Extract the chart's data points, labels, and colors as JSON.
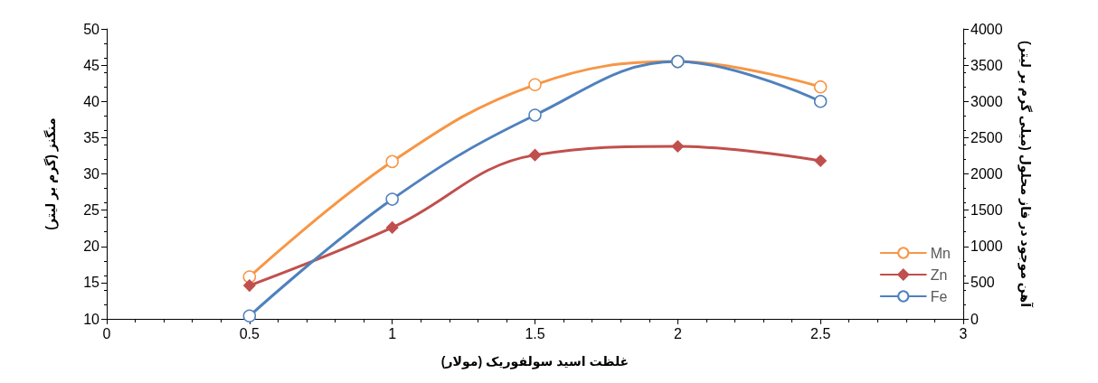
{
  "chart_data": {
    "type": "line",
    "xlabel": "غلظت اسید سولفوریک (مولار)",
    "ylabel": "منگنز (گرم بر لیتر)",
    "y2label": "آهن موجود در فاز محلول (میلی گرم بر لیتر)",
    "x": [
      0.5,
      1,
      1.5,
      2,
      2.5
    ],
    "series": [
      {
        "name": "Mn",
        "color": "#f79646",
        "marker": "circle",
        "values": [
          15.8,
          31.7,
          42.3,
          45.5,
          42.0
        ]
      },
      {
        "name": "Zn",
        "color": "#c0504d",
        "marker": "diamond",
        "values": [
          14.6,
          22.6,
          32.6,
          33.8,
          31.8
        ]
      },
      {
        "name": "Fe",
        "color": "#4f81bd",
        "marker": "circle",
        "axis": "y2",
        "values": [
          40,
          1650,
          2810,
          3550,
          3000
        ]
      }
    ],
    "xlim": [
      0,
      3
    ],
    "xticks": [
      0,
      0.5,
      1,
      1.5,
      2,
      2.5,
      3
    ],
    "ylim": [
      10,
      50
    ],
    "yticks": [
      10,
      15,
      20,
      25,
      30,
      35,
      40,
      45,
      50
    ],
    "y2lim": [
      0,
      4000
    ],
    "y2ticks": [
      0,
      500,
      1000,
      1500,
      2000,
      2500,
      3000,
      3500,
      4000
    ],
    "grid": false,
    "legend": "bottom right",
    "line_style": "solid"
  }
}
